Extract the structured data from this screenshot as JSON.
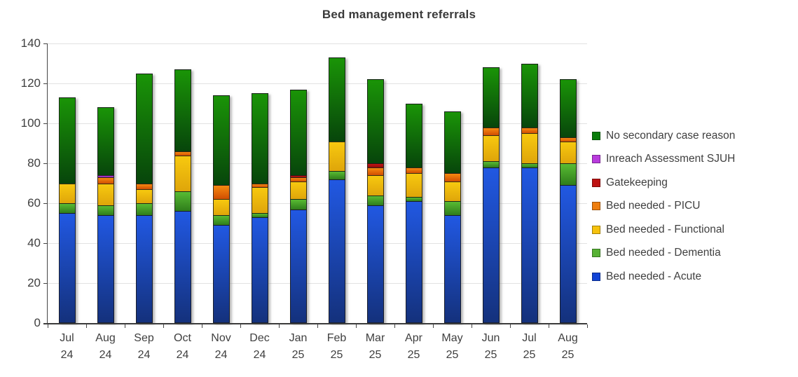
{
  "title": "Bed management referrals",
  "chart_data": {
    "type": "bar",
    "stacked": true,
    "title": "Bed management referrals",
    "xlabel": "",
    "ylabel": "",
    "ylim": [
      0,
      140
    ],
    "yticks": [
      0,
      20,
      40,
      60,
      80,
      100,
      120,
      140
    ],
    "grid": true,
    "legend_position": "right",
    "legend_order": "top-of-stack-first",
    "categories": [
      [
        "Jul",
        "24"
      ],
      [
        "Aug",
        "24"
      ],
      [
        "Sep",
        "24"
      ],
      [
        "Oct",
        "24"
      ],
      [
        "Nov",
        "24"
      ],
      [
        "Dec",
        "24"
      ],
      [
        "Jan",
        "25"
      ],
      [
        "Feb",
        "25"
      ],
      [
        "Mar",
        "25"
      ],
      [
        "Apr",
        "25"
      ],
      [
        "May",
        "25"
      ],
      [
        "Jun",
        "25"
      ],
      [
        "Jul",
        "25"
      ],
      [
        "Aug",
        "25"
      ]
    ],
    "totals": [
      113,
      108,
      125,
      127,
      114,
      115,
      117,
      133,
      122,
      110,
      106,
      128,
      130,
      122
    ],
    "series": [
      {
        "name": "Bed needed - Acute",
        "legend_color": "#1244d6",
        "color_top": "#2158e2",
        "color_bottom": "#14317c",
        "values": [
          55,
          54,
          54,
          56,
          49,
          53,
          57,
          72,
          59,
          61,
          54,
          78,
          78,
          69
        ]
      },
      {
        "name": "Bed needed - Dementia",
        "legend_color": "#57b234",
        "color_top": "#58bb33",
        "color_bottom": "#2f7d1b",
        "values": [
          5,
          5,
          6,
          10,
          5,
          2,
          5,
          4,
          5,
          2,
          7,
          3,
          2,
          11
        ]
      },
      {
        "name": "Bed needed - Functional",
        "legend_color": "#f6c20d",
        "color_top": "#f7c90f",
        "color_bottom": "#dfa50a",
        "values": [
          10,
          11,
          7,
          18,
          8,
          13,
          9,
          15,
          10,
          12,
          10,
          13,
          15,
          11
        ]
      },
      {
        "name": "Bed needed - PICU",
        "legend_color": "#ee7e10",
        "color_top": "#f68a10",
        "color_bottom": "#d14e02",
        "values": [
          0,
          3,
          3,
          2,
          7,
          2,
          2,
          0,
          4,
          3,
          4,
          4,
          3,
          2
        ]
      },
      {
        "name": "Gatekeeping",
        "legend_color": "#be1212",
        "color_top": "#c41414",
        "color_bottom": "#8f0a0a",
        "values": [
          0,
          0,
          0,
          0,
          0,
          0,
          1,
          0,
          2,
          0,
          0,
          0,
          0,
          0
        ]
      },
      {
        "name": "Inreach Assessment SJUH",
        "legend_color": "#b93bdd",
        "color_top": "#bb3de0",
        "color_bottom": "#7c1fa2",
        "values": [
          0,
          1,
          0,
          0,
          0,
          0,
          0,
          0,
          0,
          0,
          0,
          0,
          0,
          0
        ]
      },
      {
        "name": "No secondary case reason",
        "legend_color": "#0a7d0b",
        "color_top": "#1a9407",
        "color_bottom": "#07450b",
        "values": [
          43,
          34,
          55,
          41,
          45,
          45,
          43,
          42,
          42,
          32,
          31,
          30,
          32,
          29
        ]
      }
    ]
  }
}
